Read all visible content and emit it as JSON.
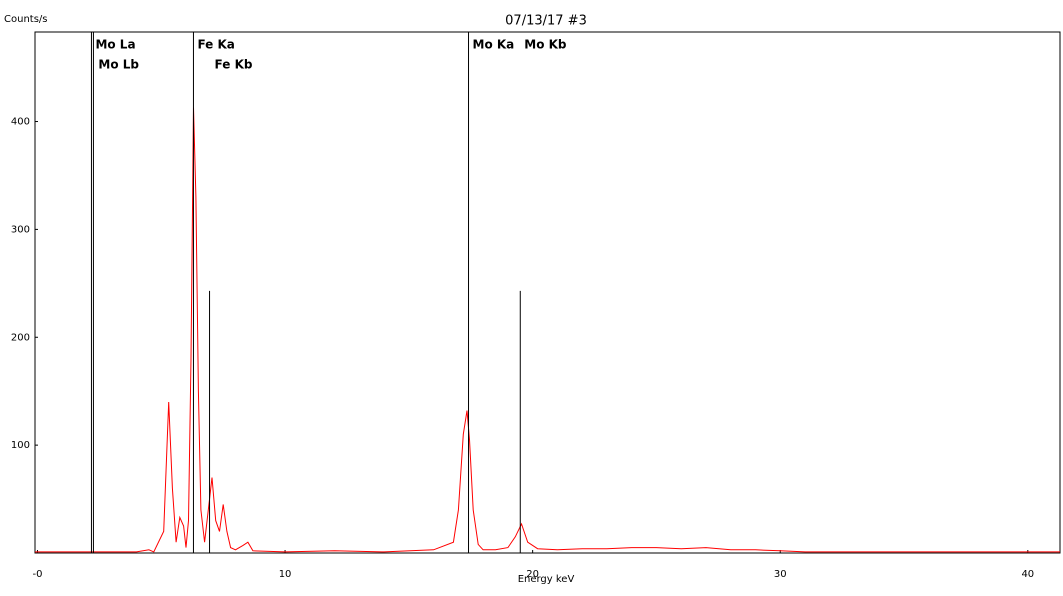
{
  "chart_data": {
    "type": "spectrum",
    "title": "07/13/17 #3",
    "y_label": "Counts/s",
    "x_label": "Energy keV",
    "color": "#ff0000",
    "marker_color": "#000000",
    "xlim": [
      -0.1,
      41.3
    ],
    "ylim": [
      0,
      483
    ],
    "xticks": [
      {
        "value": 0,
        "label": "-0"
      },
      10,
      20,
      30,
      40
    ],
    "yticks": [
      100,
      200,
      300,
      400
    ],
    "x": [
      -0.1,
      1,
      2,
      3,
      4,
      4.5,
      4.7,
      5.1,
      5.3,
      5.45,
      5.6,
      5.75,
      5.9,
      6.0,
      6.1,
      6.2,
      6.3,
      6.4,
      6.5,
      6.6,
      6.75,
      6.9,
      7.05,
      7.2,
      7.35,
      7.5,
      7.65,
      7.8,
      8.0,
      8.3,
      8.5,
      8.7,
      10,
      12,
      14,
      16,
      16.8,
      17.0,
      17.2,
      17.35,
      17.45,
      17.6,
      17.8,
      18.0,
      18.5,
      19.0,
      19.3,
      19.55,
      19.8,
      20.2,
      21,
      22,
      23,
      24,
      25,
      26,
      27,
      28,
      29,
      30,
      31,
      32,
      34,
      36,
      38,
      40,
      41.3
    ],
    "values": [
      1,
      1,
      1,
      1,
      1,
      3,
      1,
      20,
      140,
      60,
      10,
      33,
      25,
      5,
      30,
      180,
      413,
      330,
      150,
      40,
      10,
      40,
      70,
      30,
      20,
      45,
      20,
      5,
      3,
      7,
      10,
      2,
      1,
      2,
      1,
      3,
      10,
      40,
      110,
      132,
      105,
      40,
      8,
      3,
      3,
      5,
      15,
      27,
      10,
      4,
      3,
      4,
      4,
      5,
      5,
      4,
      5,
      3,
      3,
      2,
      1,
      1,
      1,
      1,
      1,
      1,
      1
    ],
    "markers": [
      {
        "label": "Mo La",
        "energy": 2.18,
        "height": 483
      },
      {
        "label": "Mo Lb",
        "energy": 2.26,
        "height": 483
      },
      {
        "label": "Fe Ka",
        "energy": 6.3,
        "height": 483
      },
      {
        "label": "Fe Kb",
        "energy": 6.95,
        "height": 243
      },
      {
        "label": "Mo Ka",
        "energy": 17.41,
        "height": 483
      },
      {
        "label": "Mo Kb",
        "energy": 19.5,
        "height": 243
      }
    ]
  }
}
